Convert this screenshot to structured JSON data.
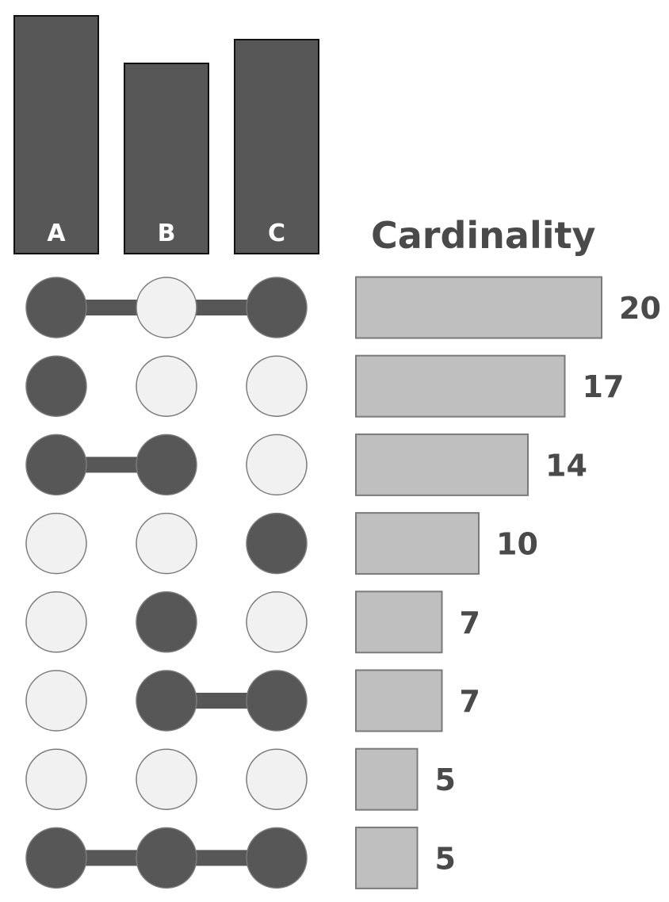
{
  "chart_data": {
    "type": "upset",
    "title": "Cardinality",
    "sets": [
      {
        "name": "A",
        "size": 100
      },
      {
        "name": "B",
        "size": 80
      },
      {
        "name": "C",
        "size": 90
      }
    ],
    "intersections": [
      {
        "members": [
          true,
          false,
          true
        ],
        "value": 20
      },
      {
        "members": [
          true,
          false,
          false
        ],
        "value": 17
      },
      {
        "members": [
          true,
          true,
          false
        ],
        "value": 14
      },
      {
        "members": [
          false,
          false,
          true
        ],
        "value": 10
      },
      {
        "members": [
          false,
          true,
          false
        ],
        "value": 7
      },
      {
        "members": [
          false,
          true,
          true
        ],
        "value": 7
      },
      {
        "members": [
          false,
          false,
          false
        ],
        "value": 5
      },
      {
        "members": [
          true,
          true,
          true
        ],
        "value": 5
      }
    ],
    "colors": {
      "set_bar": "#575757",
      "set_bar_border": "#111111",
      "set_label": "#ffffff",
      "dot_active": "#575757",
      "dot_inactive": "#f1f1f1",
      "dot_border": "#7a7a7a",
      "connector": "#575757",
      "card_bar": "#bfbfbf",
      "card_bar_border": "#7a7a7a",
      "text": "#4a4a4a"
    }
  }
}
